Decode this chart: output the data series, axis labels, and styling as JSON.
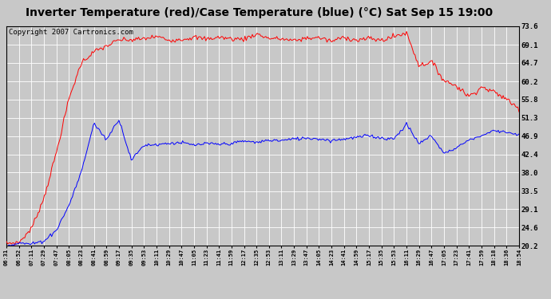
{
  "title": "Inverter Temperature (red)/Case Temperature (blue) (°C) Sat Sep 15 19:00",
  "copyright": "Copyright 2007 Cartronics.com",
  "ymin": 20.2,
  "ymax": 73.6,
  "yticks": [
    73.6,
    69.1,
    64.7,
    60.2,
    55.8,
    51.3,
    46.9,
    42.4,
    38.0,
    33.5,
    29.1,
    24.6,
    20.2
  ],
  "xtick_labels": [
    "06:31",
    "06:52",
    "07:11",
    "07:29",
    "07:47",
    "08:05",
    "08:23",
    "08:41",
    "08:59",
    "09:17",
    "09:35",
    "09:53",
    "10:11",
    "10:29",
    "10:47",
    "11:05",
    "11:23",
    "11:41",
    "11:59",
    "12:17",
    "12:35",
    "12:53",
    "13:11",
    "13:29",
    "13:47",
    "14:05",
    "14:23",
    "14:41",
    "14:59",
    "15:17",
    "15:35",
    "15:53",
    "16:11",
    "16:29",
    "16:47",
    "17:05",
    "17:23",
    "17:41",
    "17:59",
    "18:18",
    "18:36",
    "18:54"
  ],
  "red_color": "#ff0000",
  "blue_color": "#0000ff",
  "bg_color": "#c8c8c8",
  "plot_bg_color": "#c8c8c8",
  "grid_color": "#ffffff",
  "title_fontsize": 10,
  "copyright_fontsize": 6.5,
  "red_data": [
    20.5,
    21.0,
    24.0,
    31.0,
    43.0,
    56.0,
    64.0,
    67.0,
    69.0,
    70.0,
    70.5,
    70.8,
    71.0,
    71.2,
    71.3,
    71.2,
    71.0,
    70.8,
    71.0,
    71.2,
    71.0,
    70.8,
    70.5,
    70.8,
    71.0,
    70.8,
    70.5,
    70.8,
    70.5,
    70.8,
    70.5,
    70.2,
    69.5,
    67.0,
    63.0,
    61.0,
    59.0,
    57.5,
    59.5,
    57.5,
    55.5,
    53.5
  ],
  "blue_data": [
    20.2,
    20.3,
    20.5,
    21.0,
    24.0,
    30.0,
    38.0,
    46.0,
    49.0,
    46.0,
    43.0,
    44.5,
    44.8,
    45.0,
    45.2,
    45.0,
    44.8,
    45.0,
    45.2,
    45.5,
    45.5,
    45.8,
    46.0,
    46.2,
    46.5,
    46.3,
    46.0,
    46.2,
    46.5,
    46.8,
    46.5,
    46.2,
    45.8,
    50.0,
    44.0,
    42.5,
    44.5,
    46.0,
    47.5,
    48.0,
    47.5,
    47.2
  ],
  "red_noise_seed": 42,
  "blue_noise_seed": 99,
  "red_noise_scale": 0.5,
  "blue_noise_scale": 0.25,
  "red_spikes": {
    "32": 2.5,
    "33": -3.0,
    "34": 2.0
  },
  "blue_spikes": {
    "7": 4.0,
    "8": -3.0,
    "9": 5.0,
    "10": -2.0,
    "32": 4.0,
    "33": -5.0,
    "34": 3.0
  }
}
